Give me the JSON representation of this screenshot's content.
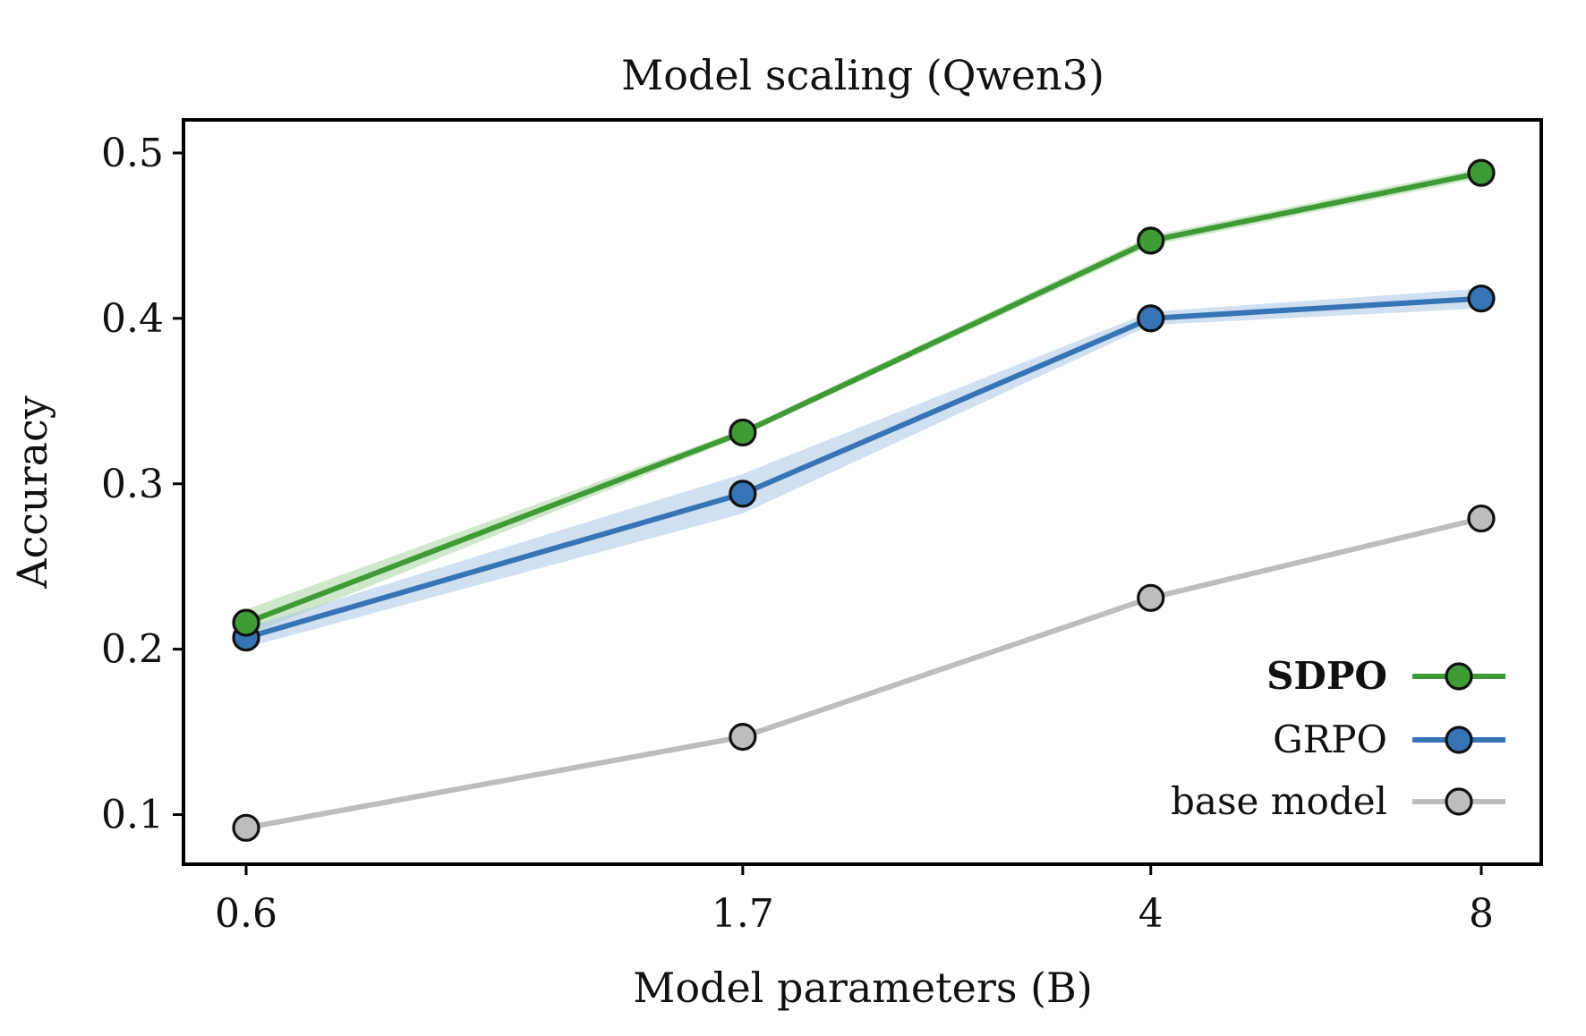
{
  "chart_data": {
    "type": "line",
    "title": "Model scaling (Qwen3)",
    "xlabel": "Model parameters (B)",
    "ylabel": "Accuracy",
    "x_scale": "log",
    "x": [
      0.6,
      1.7,
      4,
      8
    ],
    "x_tick_labels": [
      "0.6",
      "1.7",
      "4",
      "8"
    ],
    "ylim": [
      0.07,
      0.52
    ],
    "y_ticks": [
      0.1,
      0.2,
      0.3,
      0.4,
      0.5
    ],
    "y_tick_labels": [
      "0.1",
      "0.2",
      "0.3",
      "0.4",
      "0.5"
    ],
    "grid": false,
    "legend_position": "bottom-right",
    "series": [
      {
        "name": "SDPO",
        "bold": true,
        "color": "#3f9b35",
        "band_color": "#a8d5a0",
        "values": [
          0.216,
          0.331,
          0.447,
          0.488
        ],
        "band_low": [
          0.208,
          0.329,
          0.444,
          0.485
        ],
        "band_high": [
          0.224,
          0.333,
          0.45,
          0.491
        ]
      },
      {
        "name": "GRPO",
        "bold": false,
        "color": "#3774b5",
        "band_color": "#a9c6e6",
        "values": [
          0.207,
          0.294,
          0.4,
          0.412
        ],
        "band_low": [
          0.201,
          0.282,
          0.396,
          0.406
        ],
        "band_high": [
          0.213,
          0.306,
          0.404,
          0.418
        ]
      },
      {
        "name": "base model",
        "bold": false,
        "color": "#bdbdbd",
        "band_color": null,
        "values": [
          0.092,
          0.147,
          0.231,
          0.279
        ]
      }
    ]
  }
}
